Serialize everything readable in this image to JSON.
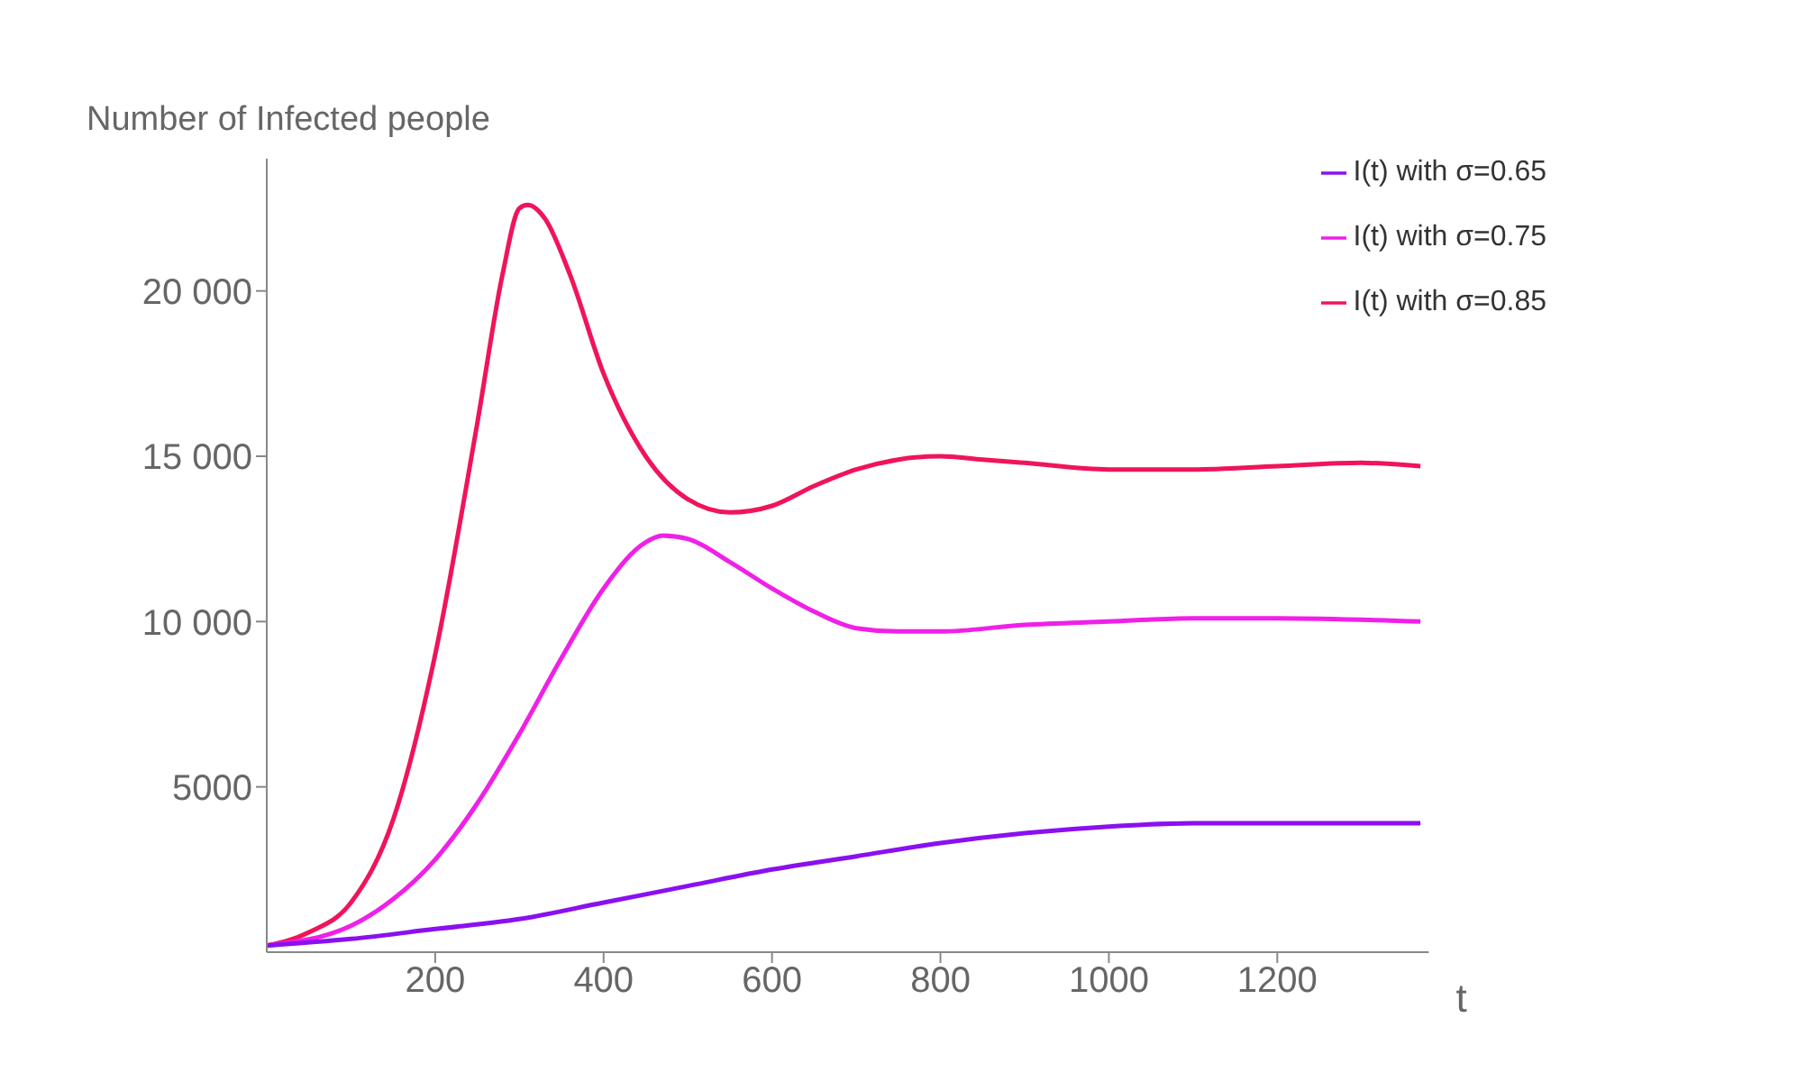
{
  "chart_data": {
    "type": "line",
    "ylabel": "Number of Infected people",
    "xlabel": "t",
    "xlim": [
      0,
      1380
    ],
    "xticks": [
      200,
      400,
      600,
      800,
      1000,
      1200
    ],
    "ylim": [
      0,
      24000
    ],
    "yticks": [
      5000,
      {
        "value": 10000,
        "label": "10 000"
      },
      {
        "value": 15000,
        "label": "15 000"
      },
      {
        "value": 20000,
        "label": "20 000"
      }
    ],
    "grid": false,
    "legend": "top right",
    "marker": "none",
    "line_style": "solid",
    "series": [
      {
        "name": "I(t) with σ=0.85",
        "color": "#f0145a",
        "x": [
          0,
          50,
          100,
          150,
          200,
          250,
          280,
          300,
          310,
          330,
          360,
          400,
          450,
          500,
          550,
          600,
          650,
          700,
          750,
          800,
          850,
          900,
          1000,
          1100,
          1200,
          1300,
          1370
        ],
        "values": [
          200,
          600,
          1500,
          4000,
          9000,
          16000,
          20500,
          22500,
          22600,
          22200,
          20500,
          17500,
          15000,
          13700,
          13300,
          13500,
          14100,
          14600,
          14900,
          15000,
          14900,
          14800,
          14600,
          14600,
          14700,
          14800,
          14700
        ]
      },
      {
        "name": "I(t) with σ=0.75",
        "color": "#f020e8",
        "x": [
          0,
          100,
          150,
          200,
          250,
          300,
          350,
          400,
          450,
          470,
          500,
          550,
          600,
          650,
          700,
          750,
          800,
          900,
          1000,
          1100,
          1200,
          1370
        ],
        "values": [
          200,
          800,
          1600,
          2800,
          4500,
          6600,
          8900,
          11000,
          12400,
          12600,
          12500,
          11800,
          11000,
          10300,
          9800,
          9700,
          9700,
          9900,
          10000,
          10100,
          10100,
          10000
        ]
      },
      {
        "name": "I(t) with σ=0.65",
        "color": "#8a10f0",
        "x": [
          0,
          100,
          200,
          300,
          400,
          500,
          600,
          700,
          800,
          900,
          1000,
          1100,
          1200,
          1370
        ],
        "values": [
          200,
          400,
          700,
          1000,
          1500,
          2000,
          2500,
          2900,
          3300,
          3600,
          3800,
          3900,
          3900,
          3900
        ]
      }
    ]
  }
}
